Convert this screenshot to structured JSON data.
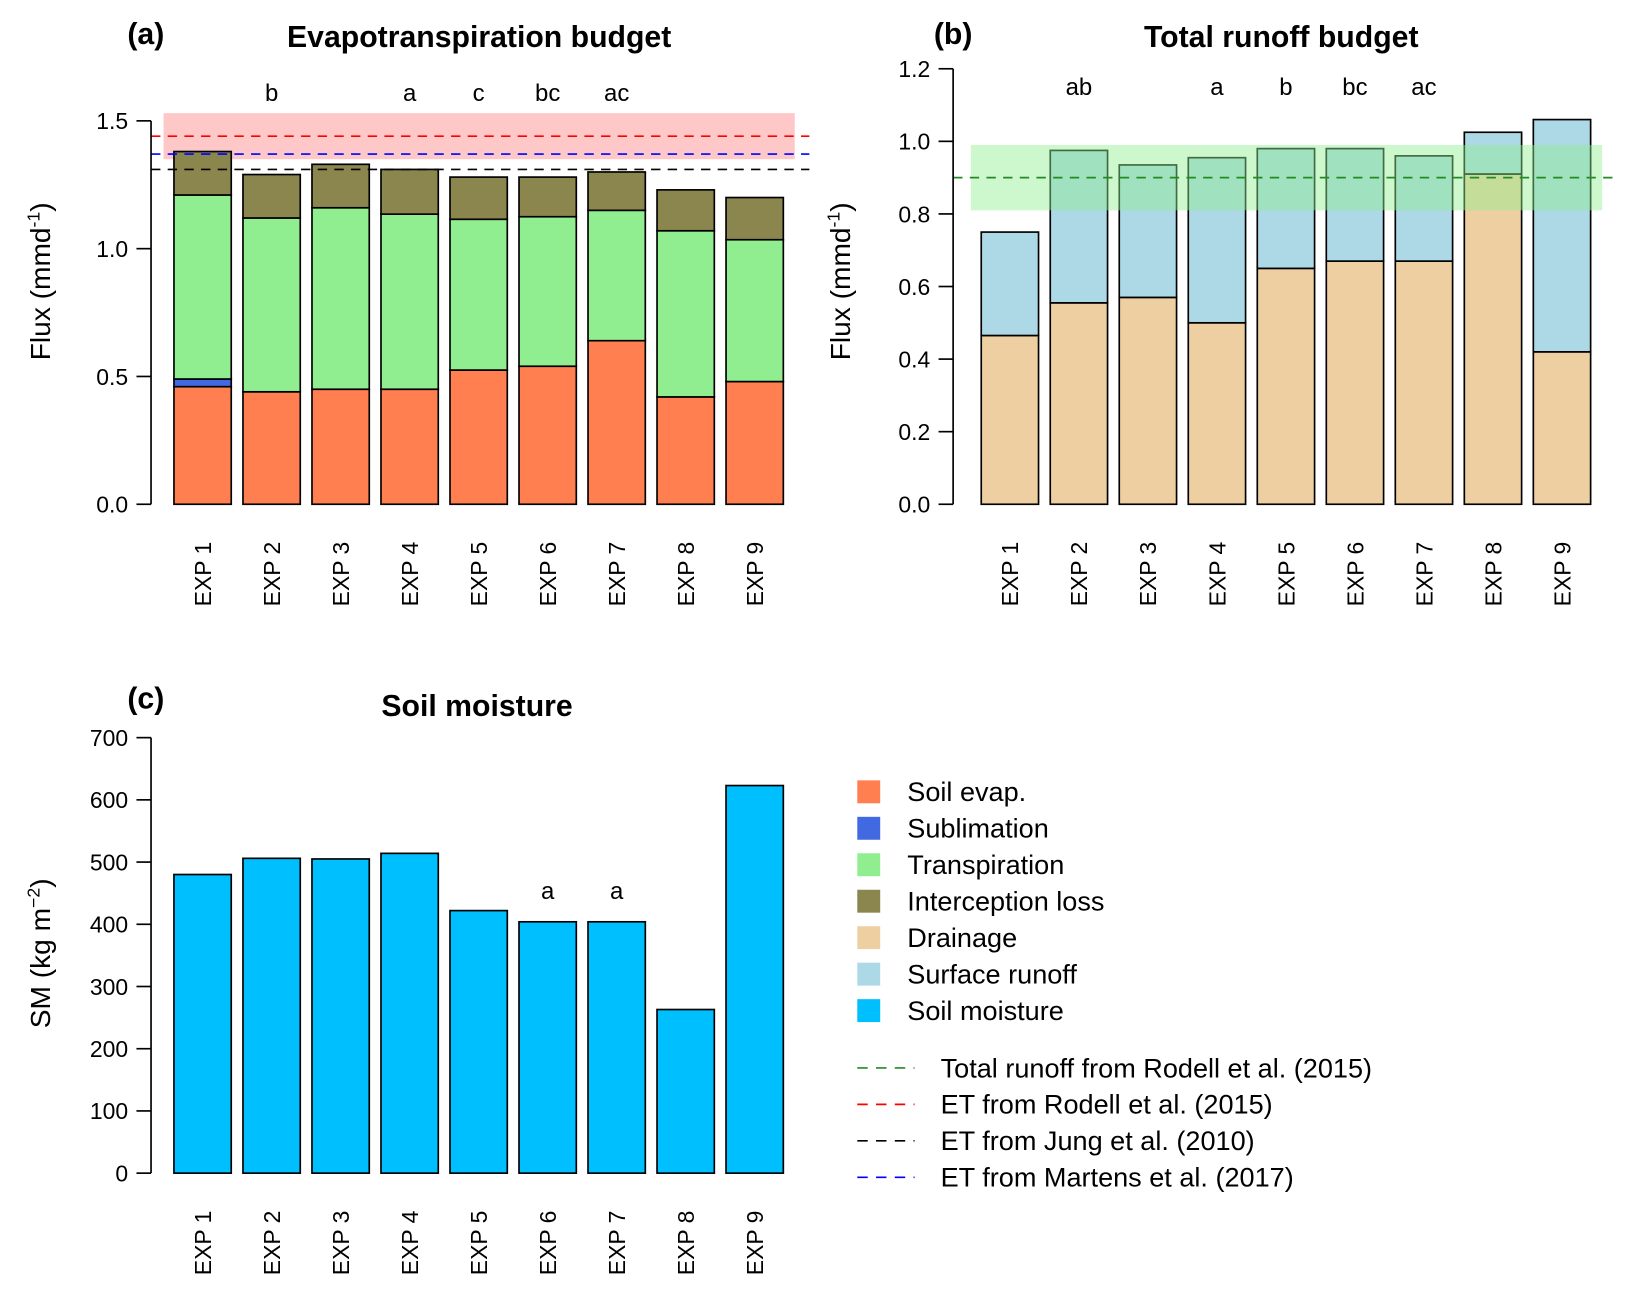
{
  "chart_data": [
    {
      "id": "a",
      "type": "bar",
      "stacked": true,
      "panel_label": "(a)",
      "title": "Evapotranspiration budget",
      "xlabel": "",
      "ylabel": "Flux (mm d^-1)",
      "ylabel_parts": {
        "main": "Flux (mmd",
        "sup": "-1",
        "end": ")"
      },
      "ylim": [
        0,
        1.5
      ],
      "yticks": [
        "0.0",
        "0.5",
        "1.0",
        "1.5"
      ],
      "ytick_values": [
        0,
        0.5,
        1.0,
        1.5
      ],
      "categories": [
        "EXP 1",
        "EXP 2",
        "EXP 3",
        "EXP 4",
        "EXP 5",
        "EXP 6",
        "EXP 7",
        "EXP 8",
        "EXP 9"
      ],
      "series": [
        {
          "name": "Soil evap.",
          "color": "#FF7F50",
          "values": [
            0.46,
            0.44,
            0.45,
            0.45,
            0.525,
            0.54,
            0.64,
            0.42,
            0.48
          ]
        },
        {
          "name": "Sublimation",
          "color": "#4169E1",
          "values": [
            0.03,
            0.0,
            0.0,
            0.0,
            0.0,
            0.0,
            0.0,
            0.0,
            0.0
          ]
        },
        {
          "name": "Transpiration",
          "color": "#90EE90",
          "values": [
            0.72,
            0.68,
            0.71,
            0.685,
            0.59,
            0.585,
            0.51,
            0.65,
            0.555
          ]
        },
        {
          "name": "Interception loss",
          "color": "#8B864E",
          "values": [
            0.17,
            0.17,
            0.17,
            0.175,
            0.165,
            0.155,
            0.15,
            0.16,
            0.165
          ]
        }
      ],
      "significance_letters": [
        "",
        "b",
        "",
        "a",
        "c",
        "bc",
        "ac",
        "",
        ""
      ],
      "reference_lines": [
        {
          "name": "ET from Rodell et al. (2015)",
          "value": 1.44,
          "color": "#FF0000",
          "band": [
            1.35,
            1.53
          ],
          "band_color": "#FFC8C8"
        },
        {
          "name": "ET from Martens et al. (2017)",
          "value": 1.37,
          "color": "#0000FF"
        },
        {
          "name": "ET from Jung et al. (2010)",
          "value": 1.31,
          "color": "#000000"
        }
      ]
    },
    {
      "id": "b",
      "type": "bar",
      "stacked": true,
      "panel_label": "(b)",
      "title": "Total runoff budget",
      "xlabel": "",
      "ylabel": "Flux (mm d^-1)",
      "ylabel_parts": {
        "main": "Flux (mmd",
        "sup": "-1",
        "end": ")"
      },
      "ylim": [
        0,
        1.2
      ],
      "yticks": [
        "0.0",
        "0.2",
        "0.4",
        "0.6",
        "0.8",
        "1.0",
        "1.2"
      ],
      "ytick_values": [
        0,
        0.2,
        0.4,
        0.6,
        0.8,
        1.0,
        1.2
      ],
      "categories": [
        "EXP 1",
        "EXP 2",
        "EXP 3",
        "EXP 4",
        "EXP 5",
        "EXP 6",
        "EXP 7",
        "EXP 8",
        "EXP 9"
      ],
      "series": [
        {
          "name": "Drainage",
          "color": "#EECFA1",
          "values": [
            0.465,
            0.555,
            0.57,
            0.5,
            0.65,
            0.67,
            0.67,
            0.91,
            0.42
          ]
        },
        {
          "name": "Surface runoff",
          "color": "#ADD8E6",
          "values": [
            0.285,
            0.42,
            0.365,
            0.455,
            0.33,
            0.31,
            0.29,
            0.115,
            0.64
          ]
        }
      ],
      "significance_letters": [
        "",
        "ab",
        "",
        "a",
        "b",
        "bc",
        "ac",
        "",
        ""
      ],
      "reference_lines": [
        {
          "name": "Total runoff from Rodell et al. (2015)",
          "value": 0.9,
          "color": "#228B22",
          "band": [
            0.81,
            0.99
          ],
          "band_color": "#90EE90"
        }
      ]
    },
    {
      "id": "c",
      "type": "bar",
      "stacked": false,
      "panel_label": "(c)",
      "title": "Soil moisture",
      "xlabel": "",
      "ylabel": "SM (kg m^-2)",
      "ylabel_parts": {
        "main": "SM (kg m",
        "sup": "−2",
        "end": ")"
      },
      "ylim": [
        0,
        700
      ],
      "yticks": [
        "0",
        "100",
        "200",
        "300",
        "400",
        "500",
        "600",
        "700"
      ],
      "ytick_values": [
        0,
        100,
        200,
        300,
        400,
        500,
        600,
        700
      ],
      "categories": [
        "EXP 1",
        "EXP 2",
        "EXP 3",
        "EXP 4",
        "EXP 5",
        "EXP 6",
        "EXP 7",
        "EXP 8",
        "EXP 9"
      ],
      "series": [
        {
          "name": "Soil moisture",
          "color": "#00BFFF",
          "values": [
            480,
            506,
            505,
            514,
            422,
            404,
            404,
            263,
            623
          ]
        }
      ],
      "significance_letters": [
        "",
        "",
        "",
        "",
        "",
        "a",
        "a",
        "",
        ""
      ],
      "reference_lines": []
    }
  ],
  "legend": {
    "fill_entries": [
      {
        "label": "Soil evap.",
        "color": "#FF7F50"
      },
      {
        "label": "Sublimation",
        "color": "#4169E1"
      },
      {
        "label": "Transpiration",
        "color": "#90EE90"
      },
      {
        "label": "Interception loss",
        "color": "#8B864E"
      },
      {
        "label": "Drainage",
        "color": "#EECFA1"
      },
      {
        "label": "Surface runoff",
        "color": "#ADD8E6"
      },
      {
        "label": "Soil moisture",
        "color": "#00BFFF"
      }
    ],
    "line_entries": [
      {
        "label": "Total runoff from Rodell et al. (2015)",
        "color": "#228B22"
      },
      {
        "label": "ET from Rodell et al. (2015)",
        "color": "#FF0000"
      },
      {
        "label": "ET from Jung et al. (2010)",
        "color": "#000000"
      },
      {
        "label": "ET from Martens et al. (2017)",
        "color": "#0000FF"
      }
    ]
  }
}
